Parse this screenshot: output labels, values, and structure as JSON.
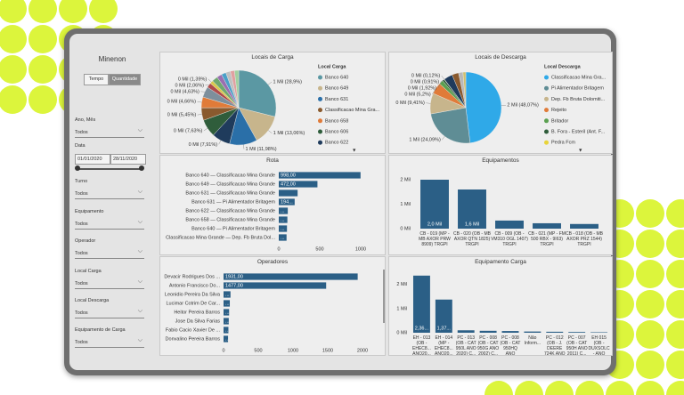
{
  "sidebar": {
    "title": "Minenon",
    "toggle": [
      "Tempo",
      "Quantidade"
    ],
    "filters": [
      {
        "label": "Ano, Mês",
        "value": "Todos"
      },
      {
        "label": "Turno",
        "value": "Todos"
      },
      {
        "label": "Equipamento",
        "value": "Todos"
      },
      {
        "label": "Operador",
        "value": "Todos"
      },
      {
        "label": "Local Carga",
        "value": "Todos"
      },
      {
        "label": "Local Descarga",
        "value": "Todos"
      },
      {
        "label": "Equipamento de Carga",
        "value": "Todos"
      }
    ],
    "date": {
      "label": "Data",
      "start": "01/01/2020",
      "end": "28/11/2020"
    }
  },
  "chart_data": [
    {
      "type": "pie",
      "title": "Locais de Carga",
      "values": [
        28.9,
        13.06,
        11.98,
        7.91,
        7.63,
        5.45,
        4.66,
        4.63,
        2.06,
        1.39,
        2.5,
        2.2,
        2.0,
        2.0,
        1.8,
        1.8
      ],
      "value_labels": [
        "1 Mil (28,9%)",
        "1 Mil (13,06%)",
        "1 Mil (11,98%)",
        "0 Mil (7,91%)",
        "0 Mil (7,63%)",
        "0 Mil (5,45%)",
        "0 Mil (4,66%)",
        "0 Mil (4,63%)",
        "0 Mil (2,06%)",
        "0 Mil (1,39%)",
        null,
        null,
        null,
        null,
        null,
        null
      ],
      "colors": [
        "#5b98a3",
        "#c7b58c",
        "#2a6fa8",
        "#1f3b5c",
        "#2f5d3b",
        "#8a5a2e",
        "#e07b39",
        "#7d8f9c",
        "#b04a4a",
        "#d9c84a",
        "#6fa86f",
        "#9a6fb0",
        "#4aa0c8",
        "#c0c0c0",
        "#e0a0a0",
        "#a0d0a0"
      ],
      "legend": {
        "title": "Local Carga",
        "items": [
          {
            "name": "Banco 640",
            "color": "#5b98a3"
          },
          {
            "name": "Banco 649",
            "color": "#c7b58c"
          },
          {
            "name": "Banco 631",
            "color": "#2a6fa8"
          },
          {
            "name": "Classificacao Mina Gra...",
            "color": "#8a5a2e"
          },
          {
            "name": "Banco 658",
            "color": "#e07b39"
          },
          {
            "name": "Banco 606",
            "color": "#2f5d3b"
          },
          {
            "name": "Banco 622",
            "color": "#1f3b5c"
          }
        ]
      }
    },
    {
      "type": "pie",
      "title": "Locais de Descarga",
      "values": [
        48.07,
        24.09,
        9.41,
        5.2,
        1.92,
        0.91,
        0.12,
        4.0,
        3.0,
        2.0,
        1.28
      ],
      "value_labels": [
        "2 Mil (48,07%)",
        "1 Mil (24,09%)",
        "0 Mil (9,41%)",
        "0 Mil (5,2%)",
        "0 Mil (1,92%)",
        "0 Mil (0,91%)",
        "0 Mil (0,12%)",
        null,
        null,
        null,
        null
      ],
      "colors": [
        "#2fa9e8",
        "#5f8d95",
        "#c7b58c",
        "#e07b39",
        "#5aa050",
        "#2f5d3b",
        "#e8d43a",
        "#1f3b5c",
        "#8a5a2e",
        "#b8b8b8",
        "#d0c070"
      ],
      "legend": {
        "title": "Local Descarga",
        "items": [
          {
            "name": "Classificacao Mina Gra...",
            "color": "#2fa9e8"
          },
          {
            "name": "Pi Alimentador Britagem",
            "color": "#5f8d95"
          },
          {
            "name": "Dep. Fb Bruta Dolomiti...",
            "color": "#c7b58c"
          },
          {
            "name": "Rejeito",
            "color": "#e07b39"
          },
          {
            "name": "Britador",
            "color": "#5aa050"
          },
          {
            "name": "B. Fora - Esteril (Ant. F...",
            "color": "#2f5d3b"
          },
          {
            "name": "Pedra Fcm",
            "color": "#e8d43a"
          }
        ]
      }
    },
    {
      "type": "bar",
      "orientation": "horizontal",
      "title": "Rota",
      "categories": [
        "Banco 640 — Classificacao Mina Grande",
        "Banco 649 — Classificacao Mina Grande",
        "Banco 631 — Classificacao Mina Grande",
        "Banco 631 — Pi Alimentador Britagem",
        "Banco 622 — Classificacao Mina Grande",
        "Banco 658 — Classificacao Mina Grande",
        "Banco 640 — Pi Alimentador Britagem",
        "Classificacao Mina Grande — Dep. Fb Bruta Dol..."
      ],
      "values": [
        998,
        472,
        230,
        194,
        110,
        105,
        100,
        95
      ],
      "value_labels": [
        "998,00",
        "472,00",
        null,
        "194...",
        "...",
        "...",
        "...",
        "..."
      ],
      "color": "#2b5f86",
      "xlim": [
        0,
        1000
      ],
      "xticks": [
        0,
        500,
        1000
      ],
      "grid": false
    },
    {
      "type": "bar",
      "orientation": "vertical",
      "title": "Equipamentos",
      "categories": [
        "CB - 019 (MP - MB AXOR PRW 8909) TRGPI",
        "CB - 020 (OB - MB AXOR QTN 1825) TRGPI",
        "CB - 009 (OB - VM310 OGL 1407) TRGPI",
        "CB - 021 (MP - FM 500 RBX - 9I63) TRGPI",
        "CB - 018 (OB - MB AXOR PRZ 1544) TRGPI"
      ],
      "values": [
        2000,
        1600,
        330,
        220,
        190
      ],
      "value_labels": [
        "2,0 Mil",
        "1,6 Mil",
        null,
        null,
        null
      ],
      "color": "#2b5f86",
      "ylim": [
        0,
        2400
      ],
      "yticks": [
        {
          "value": 0,
          "label": "0 Mil"
        },
        {
          "value": 1000,
          "label": "1 Mil"
        },
        {
          "value": 2000,
          "label": "2 Mil"
        }
      ],
      "grid": false
    },
    {
      "type": "bar",
      "orientation": "horizontal",
      "title": "Operadores",
      "categories": [
        "Devacir Rodrigues Dos ...",
        "Antonio Francisco Do...",
        "Leonidio Pereira Da Silva",
        "Lucimar Cotrim De Car...",
        "Heitor Pereira Barros",
        "Jose Da Silva Farias",
        "Fabio Cacio Xavier De ...",
        "Donvalino Pereira Barros"
      ],
      "values": [
        1931,
        1477,
        100,
        90,
        80,
        75,
        70,
        65
      ],
      "value_labels": [
        "1931,00",
        "1477,00",
        "...",
        "...",
        "...",
        "...",
        "...",
        "..."
      ],
      "color": "#2b5f86",
      "xlim": [
        0,
        2000
      ],
      "xticks": [
        0,
        500,
        1000,
        1500,
        2000
      ],
      "grid": false
    },
    {
      "type": "bar",
      "orientation": "vertical",
      "title": "Equipamento Carga",
      "categories": [
        "EH - 013 (OB - EHEC8... ANO20... EHGPI",
        "EH - 014 (MP - EHEC8... ANO20... EHGPI",
        "PC - 013 (OB - CAT 950L ANO 2020) C...",
        "PC - 008 (OB - CAT 950G ANO 2002) C...",
        "PC - 008 (OB - CAT 950HQ ANO 2012) C...",
        "Não Inform...",
        "PC - 012 (OB - J. DEERE 724K ANO 2017) C...",
        "PC - 007 (OB - CAT 950H ANO 2011) C...",
        "EH 015 (OB - DUXSOLC - ANO 2019) ..."
      ],
      "values": [
        2360,
        1370,
        100,
        80,
        70,
        50,
        40,
        30,
        20
      ],
      "value_labels": [
        "2,36...",
        "1,37...",
        null,
        null,
        null,
        null,
        null,
        null,
        null
      ],
      "color": "#2b5f86",
      "ylim": [
        0,
        2500
      ],
      "yticks": [
        {
          "value": 0,
          "label": "0 Mil"
        },
        {
          "value": 1000,
          "label": "1 Mil"
        },
        {
          "value": 2000,
          "label": "2 Mil"
        }
      ],
      "grid": false
    }
  ]
}
